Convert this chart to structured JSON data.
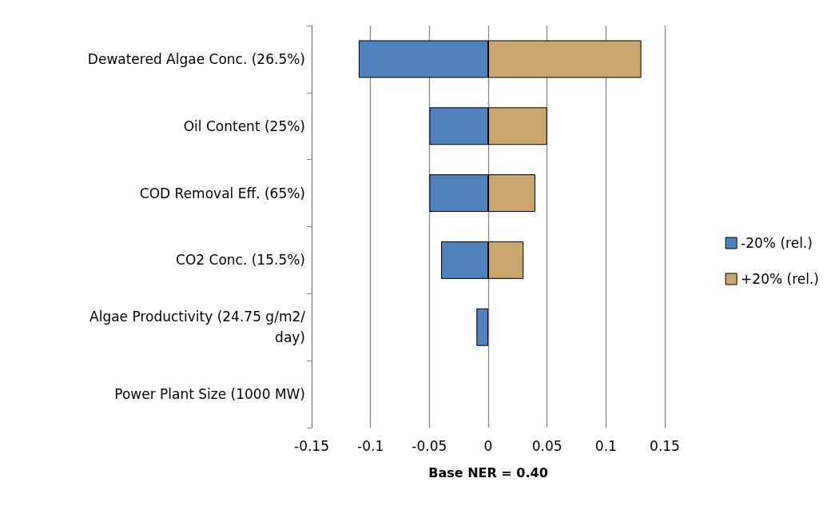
{
  "chart_data": {
    "type": "bar",
    "orientation": "horizontal",
    "stacked": true,
    "categories": [
      "Dewatered Algae Conc. (26.5%)",
      "Oil Content (25%)",
      "COD Removal Eff. (65%)",
      "CO2 Conc. (15.5%)",
      "Algae Productivity (24.75 g/m2/day)",
      "Power Plant Size (1000 MW)"
    ],
    "series": [
      {
        "name": "-20% (rel.)",
        "color": "#4f81bd",
        "values": [
          -0.11,
          -0.05,
          -0.05,
          -0.04,
          -0.01,
          0
        ]
      },
      {
        "name": "+20% (rel.)",
        "color": "#c8a66e",
        "values": [
          0.13,
          0.05,
          0.04,
          0.03,
          0,
          0
        ]
      }
    ],
    "xlabel": "Base NER = 0.40",
    "xlim": [
      -0.15,
      0.15
    ],
    "xticks": [
      -0.15,
      -0.1,
      -0.05,
      0,
      0.05,
      0.1,
      0.15
    ],
    "grid": "x",
    "legend": "right"
  }
}
